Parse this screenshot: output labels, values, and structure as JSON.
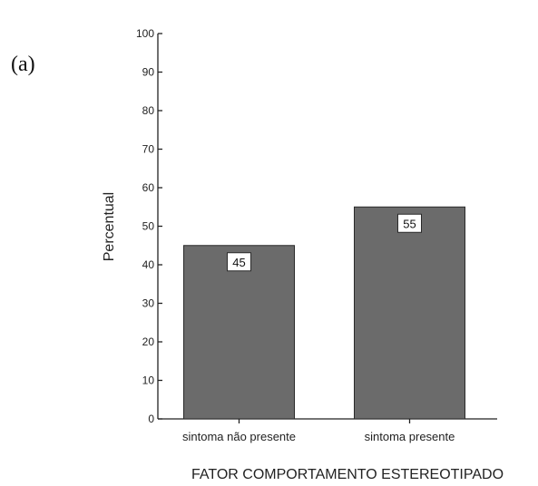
{
  "panel_label": "(a)",
  "colors": {
    "bar_fill": "#6b6b6b",
    "bar_stroke": "#2a2a2a",
    "axis": "#222222",
    "label_box_fill": "#ffffff"
  },
  "chart_data": {
    "type": "bar",
    "xlabel": "FATOR COMPORTAMENTO ESTEREOTIPADO",
    "ylabel": "Percentual",
    "categories": [
      "sintoma não presente",
      "sintoma presente"
    ],
    "values": [
      45,
      55
    ],
    "data_labels": [
      "45",
      "55"
    ],
    "ylim": [
      0,
      100
    ],
    "yticks": [
      "0",
      "10",
      "20",
      "30",
      "40",
      "50",
      "60",
      "70",
      "80",
      "90",
      "100"
    ],
    "grid": false
  }
}
